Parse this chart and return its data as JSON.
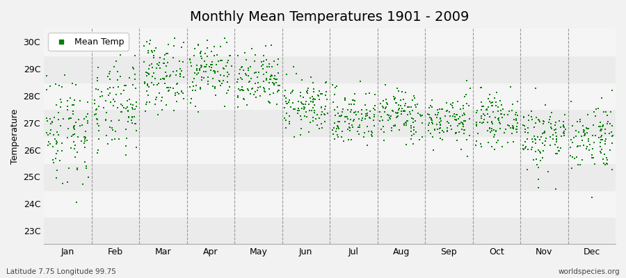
{
  "title": "Monthly Mean Temperatures 1901 - 2009",
  "ylabel": "Temperature",
  "subtitle": "Latitude 7.75 Longitude 99.75",
  "watermark": "worldspecies.org",
  "ytick_labels": [
    "23C",
    "24C",
    "25C",
    "26C",
    "27C",
    "28C",
    "29C",
    "30C"
  ],
  "ytick_values": [
    23,
    24,
    25,
    26,
    27,
    28,
    29,
    30
  ],
  "ylim": [
    22.5,
    30.5
  ],
  "months": [
    "Jan",
    "Feb",
    "Mar",
    "Apr",
    "May",
    "Jun",
    "Jul",
    "Aug",
    "Sep",
    "Oct",
    "Nov",
    "Dec"
  ],
  "month_means": [
    26.8,
    27.5,
    28.8,
    29.0,
    28.5,
    27.6,
    27.2,
    27.3,
    27.1,
    27.1,
    26.5,
    26.5
  ],
  "month_stds": [
    1.05,
    0.85,
    0.65,
    0.6,
    0.55,
    0.5,
    0.52,
    0.48,
    0.46,
    0.45,
    0.65,
    0.65
  ],
  "n_years": 109,
  "dot_color": "#008000",
  "dot_size": 4,
  "background_color": "#f2f2f2",
  "band_colors": [
    "#ebebeb",
    "#f5f5f5"
  ],
  "legend_label": "Mean Temp",
  "title_fontsize": 14,
  "label_fontsize": 9,
  "tick_fontsize": 9,
  "seed": 42
}
